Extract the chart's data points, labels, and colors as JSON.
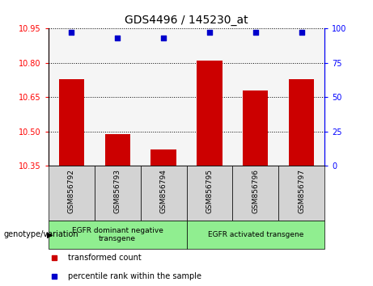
{
  "title": "GDS4496 / 145230_at",
  "samples": [
    "GSM856792",
    "GSM856793",
    "GSM856794",
    "GSM856795",
    "GSM856796",
    "GSM856797"
  ],
  "bar_values": [
    10.73,
    10.49,
    10.42,
    10.81,
    10.68,
    10.73
  ],
  "percentile_values": [
    97,
    93,
    93,
    97,
    97,
    97
  ],
  "ylim_left": [
    10.35,
    10.95
  ],
  "ylim_right": [
    0,
    100
  ],
  "yticks_left": [
    10.35,
    10.5,
    10.65,
    10.8,
    10.95
  ],
  "yticks_right": [
    0,
    25,
    50,
    75,
    100
  ],
  "bar_color": "#cc0000",
  "dot_color": "#0000cc",
  "group1_label": "EGFR dominant negative\ntransgene",
  "group2_label": "EGFR activated transgene",
  "group1_indices": [
    0,
    1,
    2
  ],
  "group2_indices": [
    3,
    4,
    5
  ],
  "legend_bar_label": "transformed count",
  "legend_dot_label": "percentile rank within the sample",
  "xlabel_annotation": "genotype/variation",
  "background_plot": "#ffffff",
  "background_group": "#90ee90",
  "background_xlabels": "#d3d3d3",
  "figsize": [
    4.61,
    3.54
  ],
  "dpi": 100
}
